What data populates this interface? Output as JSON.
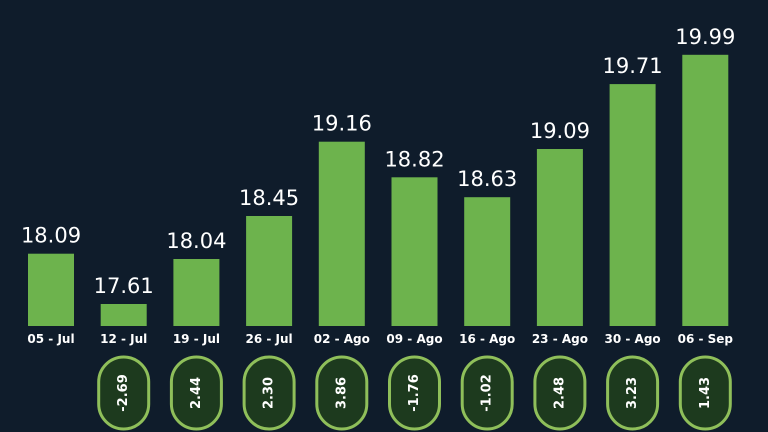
{
  "colors": {
    "background": "#0f1c2b",
    "bar": "#6db34d",
    "pill_fill": "#1d3a1e",
    "pill_stroke": "#8fbf5a",
    "text": "#ffffff"
  },
  "chart_data": {
    "type": "bar",
    "categories": [
      "05 - Jul",
      "12 - Jul",
      "19 - Jul",
      "26 - Jul",
      "02 - Ago",
      "09 - Ago",
      "16 - Ago",
      "23 - Ago",
      "30 - Ago",
      "06 - Sep"
    ],
    "values": [
      18.09,
      17.61,
      18.04,
      18.45,
      19.16,
      18.82,
      18.63,
      19.09,
      19.71,
      19.99
    ],
    "value_labels": [
      "18.09",
      "17.61",
      "18.04",
      "18.45",
      "19.16",
      "18.82",
      "18.63",
      "19.09",
      "19.71",
      "19.99"
    ],
    "changes": [
      "",
      "-2.69",
      "2.44",
      "2.30",
      "3.86",
      "-1.76",
      "-1.02",
      "2.48",
      "3.23",
      "1.43"
    ],
    "ylim": [
      17.4,
      20.15
    ],
    "grid": false,
    "title": "",
    "xlabel": "",
    "ylabel": ""
  }
}
